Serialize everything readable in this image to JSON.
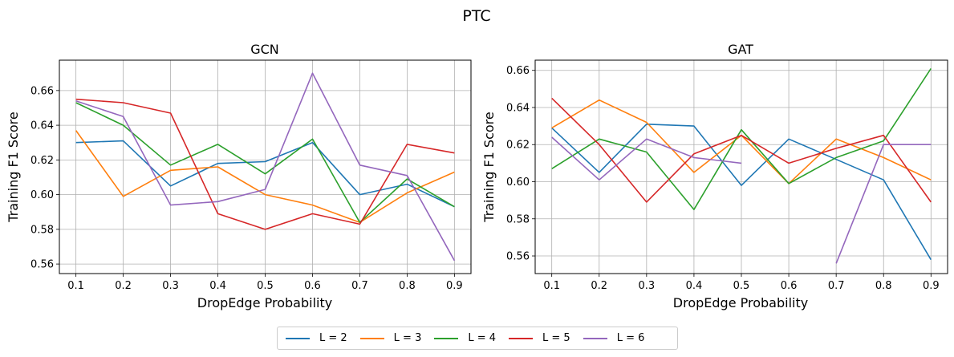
{
  "figure": {
    "suptitle": "PTC"
  },
  "legend": {
    "placement": "bottom-center",
    "items": [
      {
        "label": "L = 2",
        "color": "#1f77b4"
      },
      {
        "label": "L = 3",
        "color": "#ff7f0e"
      },
      {
        "label": "L = 4",
        "color": "#2ca02c"
      },
      {
        "label": "L = 5",
        "color": "#d62728"
      },
      {
        "label": "L = 6",
        "color": "#9467bd"
      }
    ]
  },
  "chart_data": [
    {
      "type": "line",
      "title": "GCN",
      "xlabel": "DropEdge Probability",
      "ylabel": "Training F1 Score",
      "x": [
        0.1,
        0.2,
        0.3,
        0.4,
        0.5,
        0.6,
        0.7,
        0.8,
        0.9
      ],
      "x_tick_labels": [
        "0.1",
        "0.2",
        "0.3",
        "0.4",
        "0.5",
        "0.6",
        "0.7",
        "0.8",
        "0.9"
      ],
      "xlim": [
        0.065,
        0.935
      ],
      "ylim": [
        0.5545,
        0.6775
      ],
      "y_ticks": [
        0.56,
        0.58,
        0.6,
        0.62,
        0.64,
        0.66
      ],
      "y_tick_labels": [
        "0.56",
        "0.58",
        "0.60",
        "0.62",
        "0.64",
        "0.66"
      ],
      "grid": true,
      "series": [
        {
          "name": "L = 2",
          "color": "#1f77b4",
          "values": [
            0.63,
            0.631,
            0.605,
            0.618,
            0.619,
            0.63,
            0.6,
            0.606,
            0.593
          ]
        },
        {
          "name": "L = 3",
          "color": "#ff7f0e",
          "values": [
            0.637,
            0.599,
            0.614,
            0.616,
            0.6,
            0.594,
            0.584,
            0.601,
            0.613
          ]
        },
        {
          "name": "L = 4",
          "color": "#2ca02c",
          "values": [
            0.653,
            0.64,
            0.617,
            0.629,
            0.612,
            0.632,
            0.584,
            0.609,
            0.593
          ]
        },
        {
          "name": "L = 5",
          "color": "#d62728",
          "values": [
            0.655,
            0.653,
            0.647,
            0.589,
            0.58,
            0.589,
            0.583,
            0.629,
            0.624
          ]
        },
        {
          "name": "L = 6",
          "color": "#9467bd",
          "values": [
            0.654,
            0.645,
            0.594,
            0.596,
            0.603,
            0.67,
            0.617,
            0.611,
            0.562
          ]
        }
      ]
    },
    {
      "type": "line",
      "title": "GAT",
      "xlabel": "DropEdge Probability",
      "ylabel": "Training F1 Score",
      "x": [
        0.1,
        0.2,
        0.3,
        0.4,
        0.5,
        0.6,
        0.7,
        0.8,
        0.9
      ],
      "x_tick_labels": [
        "0.1",
        "0.2",
        "0.3",
        "0.4",
        "0.5",
        "0.6",
        "0.7",
        "0.8",
        "0.9"
      ],
      "xlim": [
        0.065,
        0.935
      ],
      "ylim": [
        0.5505,
        0.6655
      ],
      "y_ticks": [
        0.56,
        0.58,
        0.6,
        0.62,
        0.64,
        0.66
      ],
      "y_tick_labels": [
        "0.56",
        "0.58",
        "0.60",
        "0.62",
        "0.64",
        "0.66"
      ],
      "grid": true,
      "series": [
        {
          "name": "L = 2",
          "color": "#1f77b4",
          "values": [
            0.629,
            0.605,
            0.631,
            0.63,
            0.598,
            0.623,
            0.612,
            0.601,
            0.558
          ]
        },
        {
          "name": "L = 3",
          "color": "#ff7f0e",
          "values": [
            0.629,
            0.644,
            0.632,
            0.605,
            0.625,
            0.599,
            0.623,
            0.613,
            0.601
          ]
        },
        {
          "name": "L = 4",
          "color": "#2ca02c",
          "values": [
            0.607,
            0.623,
            0.616,
            0.585,
            0.628,
            0.599,
            0.613,
            0.622,
            0.661
          ]
        },
        {
          "name": "L = 5",
          "color": "#d62728",
          "values": [
            0.645,
            0.62,
            0.589,
            0.615,
            0.625,
            0.61,
            0.618,
            0.625,
            0.589
          ]
        },
        {
          "name": "L = 6",
          "color": "#9467bd",
          "values": [
            0.624,
            0.601,
            0.623,
            0.613,
            0.61,
            null,
            0.556,
            0.62,
            0.62
          ]
        }
      ]
    }
  ]
}
